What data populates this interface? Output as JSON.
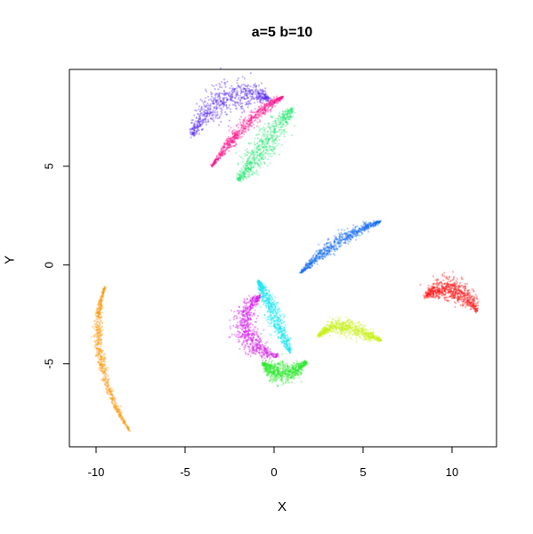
{
  "chart_data": {
    "type": "scatter",
    "title": "a=5 b=10",
    "xlabel": "X",
    "ylabel": "Y",
    "xlim": [
      -11.5,
      12.5
    ],
    "ylim": [
      -9.2,
      9.9
    ],
    "xticks": [
      -10,
      -5,
      0,
      5,
      10
    ],
    "yticks": [
      -5,
      0,
      5
    ],
    "xtick_labels": [
      "-10",
      "-5",
      "0",
      "5",
      "10"
    ],
    "ytick_labels": [
      "-5",
      "0",
      "5"
    ],
    "grid": false,
    "legend": "none",
    "point_alpha": 0.12,
    "clusters": [
      {
        "color": "#5a2df0",
        "shape": "arc",
        "center": [
          -2.2,
          7.0
        ],
        "spread": 1.6,
        "path": [
          [
            -4.6,
            6.6
          ],
          [
            -3.8,
            8.2
          ],
          [
            -2.0,
            9.2
          ],
          [
            -0.3,
            8.4
          ]
        ],
        "width": 0.9
      },
      {
        "color": "#ff1a90",
        "shape": "arc",
        "center": [
          -1.0,
          6.8
        ],
        "spread": 0.25,
        "path": [
          [
            -3.5,
            5.0
          ],
          [
            -2.2,
            6.6
          ],
          [
            -0.8,
            8.0
          ],
          [
            0.5,
            8.5
          ]
        ],
        "width": 0.35
      },
      {
        "color": "#2ee878",
        "shape": "arc",
        "center": [
          -0.6,
          6.2
        ],
        "spread": 0.9,
        "path": [
          [
            -2.0,
            4.3
          ],
          [
            -1.0,
            5.4
          ],
          [
            0.0,
            6.8
          ],
          [
            1.0,
            7.9
          ]
        ],
        "width": 0.75
      },
      {
        "color": "#1a6ff0",
        "shape": "arc",
        "center": [
          3.5,
          1.0
        ],
        "spread": 0.3,
        "path": [
          [
            1.5,
            -0.4
          ],
          [
            2.8,
            0.8
          ],
          [
            4.2,
            1.7
          ],
          [
            6.0,
            2.2
          ]
        ],
        "width": 0.35
      },
      {
        "color": "#ff1a1a",
        "shape": "arc",
        "center": [
          10.2,
          -1.5
        ],
        "spread": 0.6,
        "path": [
          [
            8.5,
            -1.6
          ],
          [
            9.6,
            -0.8
          ],
          [
            10.6,
            -1.2
          ],
          [
            11.4,
            -2.3
          ]
        ],
        "width": 0.65
      },
      {
        "color": "#ff9a10",
        "shape": "arc",
        "center": [
          -9.5,
          -4.5
        ],
        "spread": 0.2,
        "path": [
          [
            -9.5,
            -1.1
          ],
          [
            -10.3,
            -3.0
          ],
          [
            -9.9,
            -6.0
          ],
          [
            -8.1,
            -8.4
          ]
        ],
        "width": 0.25
      },
      {
        "color": "#d21eea",
        "shape": "arc",
        "center": [
          -1.3,
          -3.2
        ],
        "spread": 0.8,
        "path": [
          [
            -0.8,
            -1.6
          ],
          [
            -2.2,
            -2.4
          ],
          [
            -2.0,
            -4.2
          ],
          [
            0.2,
            -4.6
          ]
        ],
        "width": 0.7
      },
      {
        "color": "#1ee6f0",
        "shape": "arc",
        "center": [
          0.0,
          -2.8
        ],
        "spread": 0.4,
        "path": [
          [
            -0.9,
            -0.8
          ],
          [
            -0.3,
            -1.8
          ],
          [
            0.3,
            -3.2
          ],
          [
            0.9,
            -4.4
          ]
        ],
        "width": 0.45
      },
      {
        "color": "#2eea2e",
        "shape": "arc",
        "center": [
          0.5,
          -5.4
        ],
        "spread": 0.5,
        "path": [
          [
            -0.6,
            -5.0
          ],
          [
            0.0,
            -5.5
          ],
          [
            0.8,
            -5.8
          ],
          [
            1.8,
            -4.9
          ]
        ],
        "width": 0.55
      },
      {
        "color": "#c8f01a",
        "shape": "arc",
        "center": [
          4.2,
          -3.5
        ],
        "spread": 0.6,
        "path": [
          [
            2.5,
            -3.6
          ],
          [
            3.6,
            -2.6
          ],
          [
            4.8,
            -3.4
          ],
          [
            6.0,
            -3.8
          ]
        ],
        "width": 0.45
      }
    ]
  }
}
